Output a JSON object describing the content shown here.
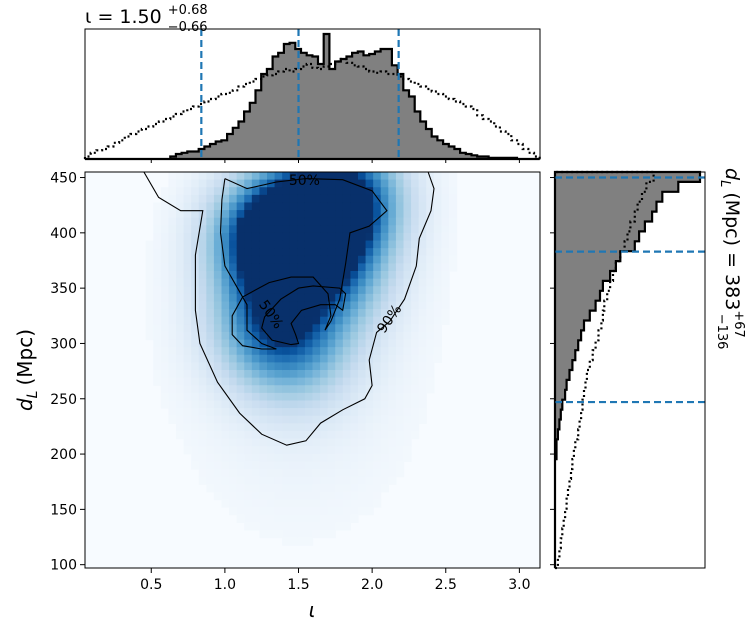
{
  "chart_data": [
    {
      "type": "heatmap",
      "panel": "joint",
      "xlabel": "ι",
      "ylabel_main": "d",
      "ylabel_sub": "L",
      "ylabel_unit": "(Mpc)",
      "xlim": [
        0.05,
        3.14
      ],
      "ylim": [
        97,
        455
      ],
      "xticks": [
        0.5,
        1.0,
        1.5,
        2.0,
        2.5,
        3.0
      ],
      "xtick_labels": [
        "0.5",
        "1.0",
        "1.5",
        "2.0",
        "2.5",
        "3.0"
      ],
      "yticks": [
        100,
        150,
        200,
        250,
        300,
        350,
        400,
        450
      ],
      "ytick_labels": [
        "100",
        "150",
        "200",
        "250",
        "300",
        "350",
        "400",
        "450"
      ],
      "colormap": "Blues",
      "density_peaks": [
        {
          "x": 1.3,
          "y": 395,
          "weight": 1.0
        },
        {
          "x": 1.82,
          "y": 432,
          "weight": 0.95
        },
        {
          "x": 1.55,
          "y": 405,
          "weight": 0.7
        },
        {
          "x": 1.3,
          "y": 318,
          "weight": 0.6
        },
        {
          "x": 1.75,
          "y": 360,
          "weight": 0.45
        },
        {
          "x": 1.5,
          "y": 292,
          "weight": 0.35
        }
      ],
      "contours": [
        {
          "label": "50%",
          "label_pos": {
            "x": 1.54,
            "y": 447
          },
          "points": [
            [
              1.0,
              449
            ],
            [
              1.15,
              440
            ],
            [
              1.35,
              446
            ],
            [
              1.55,
              449
            ],
            [
              1.8,
              448
            ],
            [
              2.0,
              438
            ],
            [
              2.1,
              420
            ],
            [
              1.98,
              406
            ],
            [
              1.85,
              400
            ],
            [
              1.82,
              372
            ],
            [
              1.78,
              340
            ],
            [
              1.72,
              320
            ],
            [
              1.68,
              312
            ],
            [
              1.72,
              325
            ],
            [
              1.7,
              345
            ],
            [
              1.6,
              360
            ],
            [
              1.45,
              360
            ],
            [
              1.3,
              355
            ],
            [
              1.12,
              342
            ],
            [
              1.05,
              325
            ],
            [
              1.05,
              308
            ],
            [
              1.12,
              298
            ],
            [
              1.25,
              295
            ],
            [
              1.35,
              295
            ],
            [
              1.25,
              300
            ],
            [
              1.15,
              312
            ],
            [
              1.15,
              335
            ],
            [
              1.0,
              370
            ],
            [
              0.97,
              400
            ],
            [
              0.98,
              430
            ],
            [
              1.0,
              449
            ]
          ]
        },
        {
          "label": "50%",
          "label_pos": {
            "x": 1.31,
            "y": 326
          },
          "points": [
            [
              1.5,
              350
            ],
            [
              1.38,
              340
            ],
            [
              1.27,
              324
            ],
            [
              1.25,
              314
            ],
            [
              1.32,
              303
            ],
            [
              1.45,
              299
            ],
            [
              1.5,
              300
            ],
            [
              1.48,
              308
            ],
            [
              1.45,
              318
            ],
            [
              1.52,
              330
            ],
            [
              1.65,
              335
            ],
            [
              1.75,
              335
            ],
            [
              1.8,
              330
            ],
            [
              1.82,
              345
            ],
            [
              1.78,
              350
            ],
            [
              1.6,
              352
            ],
            [
              1.5,
              350
            ]
          ]
        },
        {
          "label": "90%",
          "label_pos": {
            "x": 2.12,
            "y": 322
          },
          "points": [
            [
              0.45,
              455
            ],
            [
              0.55,
              432
            ],
            [
              0.7,
              420
            ],
            [
              0.85,
              420
            ],
            [
              0.8,
              380
            ],
            [
              0.8,
              330
            ],
            [
              0.83,
              300
            ],
            [
              0.95,
              265
            ],
            [
              1.1,
              237
            ],
            [
              1.25,
              218
            ],
            [
              1.42,
              208
            ],
            [
              1.55,
              212
            ],
            [
              1.65,
              228
            ],
            [
              1.8,
              240
            ],
            [
              1.95,
              250
            ],
            [
              2.0,
              262
            ],
            [
              1.98,
              285
            ],
            [
              2.03,
              310
            ],
            [
              2.12,
              320
            ],
            [
              2.22,
              340
            ],
            [
              2.3,
              370
            ],
            [
              2.32,
              395
            ],
            [
              2.4,
              420
            ],
            [
              2.42,
              440
            ],
            [
              2.38,
              455
            ]
          ]
        }
      ]
    },
    {
      "type": "histogram",
      "panel": "top-marginal",
      "title_main": "ι = 1.50",
      "title_sup": "+0.68",
      "title_sub": "−0.66",
      "median": 1.5,
      "interval": [
        0.84,
        2.18
      ],
      "bins": {
        "start": 0.05,
        "width": 0.0386,
        "count": 80
      },
      "series": [
        {
          "style": "filled",
          "values": [
            0,
            0,
            0,
            0,
            0,
            0,
            0,
            0,
            0,
            0,
            0,
            0,
            0,
            0,
            0,
            0.02,
            0.04,
            0.05,
            0.06,
            0.06,
            0.08,
            0.1,
            0.12,
            0.14,
            0.15,
            0.2,
            0.25,
            0.3,
            0.38,
            0.45,
            0.55,
            0.68,
            0.72,
            0.82,
            0.85,
            0.92,
            0.93,
            0.88,
            0.85,
            0.83,
            0.82,
            0.76,
            1.0,
            0.72,
            0.78,
            0.8,
            0.82,
            0.85,
            0.86,
            0.83,
            0.84,
            0.86,
            0.88,
            0.88,
            0.75,
            0.68,
            0.55,
            0.5,
            0.38,
            0.3,
            0.24,
            0.18,
            0.15,
            0.12,
            0.1,
            0.08,
            0.05,
            0.04,
            0.03,
            0.02,
            0.02,
            0.01,
            0.01,
            0.01,
            0.01,
            0.01,
            0,
            0,
            0,
            0
          ]
        },
        {
          "style": "dotted",
          "values": [
            0.02,
            0.05,
            0.07,
            0.08,
            0.1,
            0.13,
            0.15,
            0.18,
            0.2,
            0.22,
            0.24,
            0.26,
            0.28,
            0.3,
            0.32,
            0.34,
            0.36,
            0.38,
            0.4,
            0.42,
            0.44,
            0.46,
            0.48,
            0.5,
            0.52,
            0.53,
            0.55,
            0.58,
            0.6,
            0.62,
            0.64,
            0.66,
            0.67,
            0.68,
            0.7,
            0.72,
            0.7,
            0.72,
            0.74,
            0.76,
            0.73,
            0.72,
            0.74,
            0.76,
            0.78,
            0.8,
            0.77,
            0.75,
            0.74,
            0.72,
            0.7,
            0.69,
            0.7,
            0.68,
            0.68,
            0.66,
            0.64,
            0.62,
            0.6,
            0.58,
            0.56,
            0.54,
            0.52,
            0.5,
            0.48,
            0.46,
            0.44,
            0.42,
            0.4,
            0.35,
            0.32,
            0.3,
            0.26,
            0.22,
            0.2,
            0.15,
            0.12,
            0.08,
            0.05,
            0.02
          ]
        }
      ]
    },
    {
      "type": "histogram",
      "panel": "right-marginal",
      "orientation": "horizontal",
      "ylabel_main": "d",
      "ylabel_sub": "L",
      "ylabel_rest": "(Mpc) = 383",
      "ylabel_sup": "+67",
      "ylabel_subrange": "−136",
      "median": 383,
      "interval": [
        247,
        450
      ],
      "bins": {
        "start": 97,
        "width": 8.95,
        "count": 40
      },
      "series": [
        {
          "style": "filled",
          "values": [
            0.0,
            0.0,
            0.0,
            0.0,
            0.0,
            0.0,
            0.0,
            0.0,
            0.0,
            0.0,
            0.0,
            0.01,
            0.01,
            0.02,
            0.03,
            0.04,
            0.05,
            0.07,
            0.08,
            0.1,
            0.12,
            0.14,
            0.16,
            0.18,
            0.2,
            0.24,
            0.28,
            0.31,
            0.33,
            0.38,
            0.42,
            0.45,
            0.55,
            0.58,
            0.62,
            0.67,
            0.7,
            0.74,
            0.85,
            1.0
          ]
        },
        {
          "style": "dotted",
          "values": [
            0.02,
            0.03,
            0.04,
            0.05,
            0.06,
            0.07,
            0.08,
            0.09,
            0.1,
            0.11,
            0.12,
            0.13,
            0.14,
            0.16,
            0.17,
            0.18,
            0.19,
            0.2,
            0.21,
            0.22,
            0.24,
            0.26,
            0.28,
            0.3,
            0.32,
            0.33,
            0.34,
            0.36,
            0.38,
            0.4,
            0.42,
            0.45,
            0.48,
            0.5,
            0.52,
            0.55,
            0.57,
            0.6,
            0.63,
            0.68
          ]
        }
      ]
    }
  ],
  "colors": {
    "fill": "#808080",
    "outline": "#000000",
    "quantile_line": "#1f77b4",
    "cmap_low": "#f7fbff",
    "cmap_high": "#08306b"
  }
}
